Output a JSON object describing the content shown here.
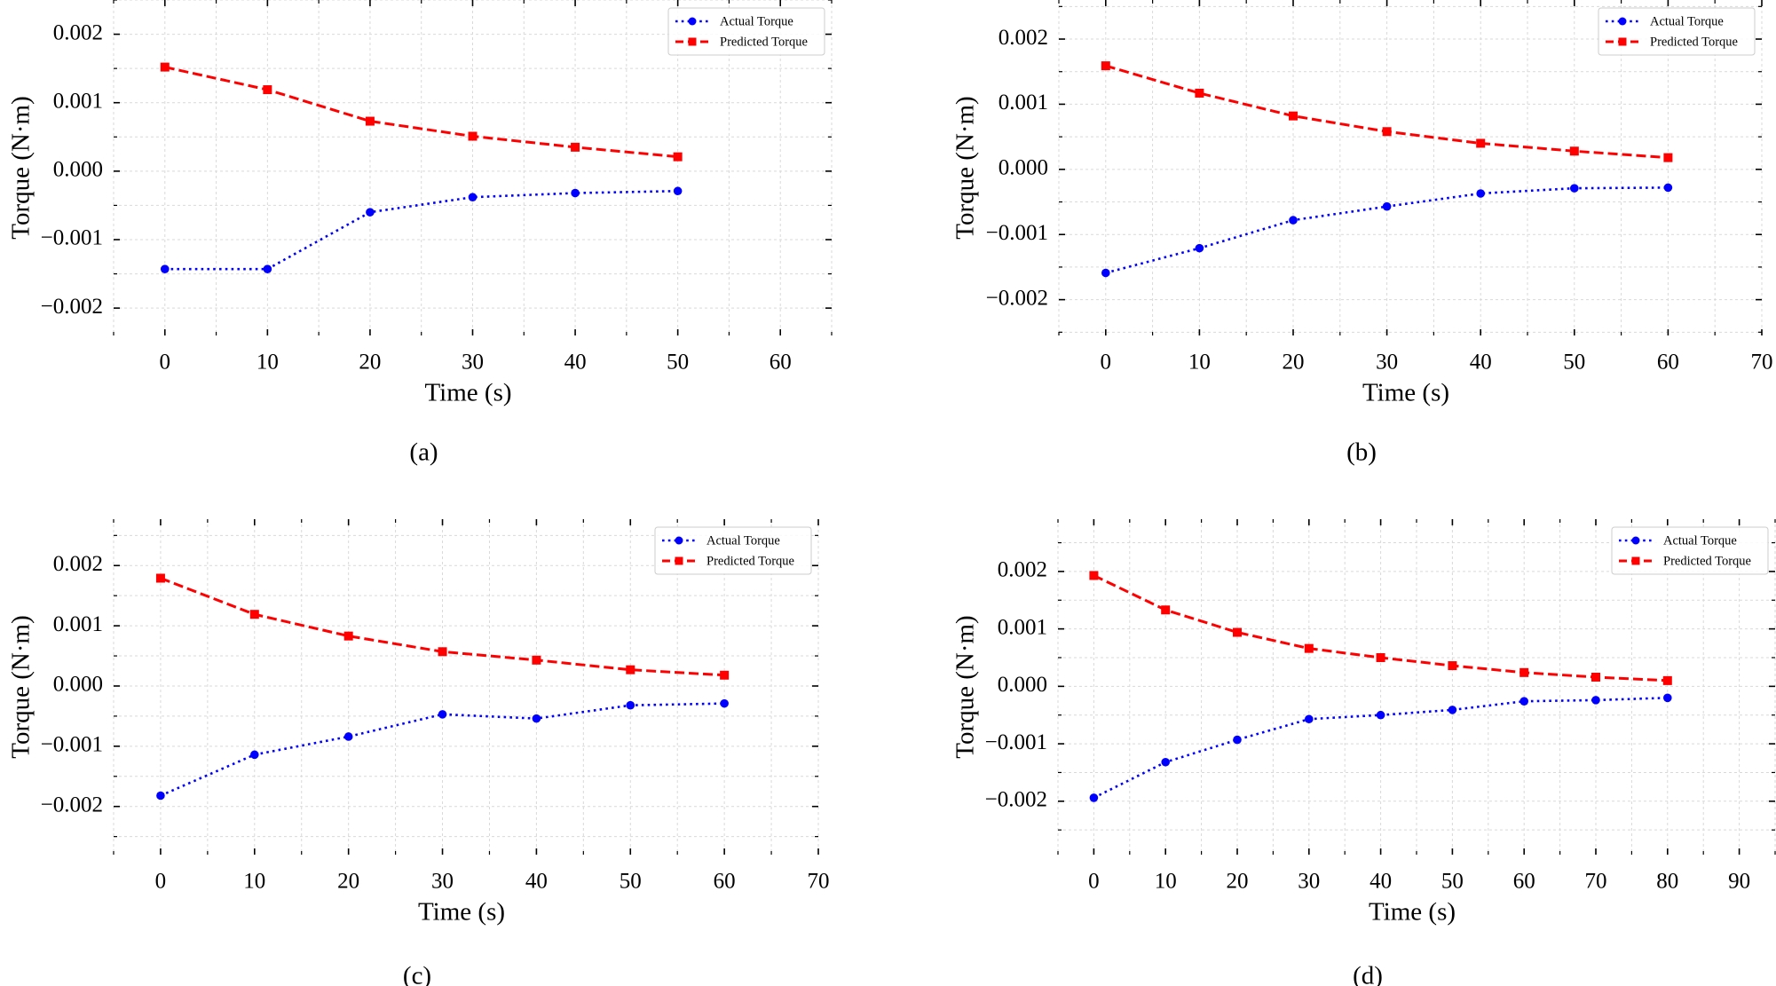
{
  "figure": {
    "panels": [
      "a",
      "b",
      "c",
      "d"
    ]
  },
  "colors": {
    "actual": "#0000ff",
    "predicted": "#ff0000",
    "grid": "#d9d9d9",
    "legend_border": "#cccccc"
  },
  "chart_data": [
    {
      "type": "line",
      "panel": "a",
      "caption": "(a)",
      "title": "",
      "xlabel": "Time (s)",
      "ylabel": "Torque (N·m)",
      "xlim": [
        -5,
        65
      ],
      "ylim": [
        -0.0024,
        0.0025
      ],
      "xticks": [
        0,
        10,
        20,
        30,
        40,
        50,
        60
      ],
      "xtick_labels": [
        "0",
        "10",
        "20",
        "30",
        "40",
        "50",
        "60"
      ],
      "yticks": [
        -0.002,
        -0.001,
        0.0,
        0.001,
        0.002
      ],
      "ytick_labels": [
        "−0.002",
        "−0.001",
        "0.000",
        "0.001",
        "0.002"
      ],
      "grid": true,
      "legend_position": "top-right",
      "x": [
        0,
        10,
        20,
        30,
        40,
        50
      ],
      "series": [
        {
          "name": "Actual Torque",
          "marker": "circle",
          "linestyle": "dotted",
          "values": [
            -0.00143,
            -0.00143,
            -0.0006,
            -0.00038,
            -0.00032,
            -0.00029
          ]
        },
        {
          "name": "Predicted Torque",
          "marker": "square",
          "linestyle": "dashed",
          "values": [
            0.00152,
            0.00119,
            0.00073,
            0.00051,
            0.00035,
            0.00021
          ]
        }
      ]
    },
    {
      "type": "line",
      "panel": "b",
      "caption": "(b)",
      "title": "",
      "xlabel": "Time (s)",
      "ylabel": "Torque (N·m)",
      "xlim": [
        -5,
        70
      ],
      "ylim": [
        -0.00255,
        0.0026
      ],
      "xticks": [
        0,
        10,
        20,
        30,
        40,
        50,
        60,
        70
      ],
      "xtick_labels": [
        "0",
        "10",
        "20",
        "30",
        "40",
        "50",
        "60",
        "70"
      ],
      "yticks": [
        -0.002,
        -0.001,
        0.0,
        0.001,
        0.002
      ],
      "ytick_labels": [
        "−0.002",
        "−0.001",
        "0.000",
        "0.001",
        "0.002"
      ],
      "grid": true,
      "legend_position": "top-right",
      "x": [
        0,
        10,
        20,
        30,
        40,
        50,
        60
      ],
      "series": [
        {
          "name": "Actual Torque",
          "marker": "circle",
          "linestyle": "dotted",
          "values": [
            -0.00159,
            -0.00121,
            -0.00078,
            -0.00057,
            -0.00037,
            -0.00029,
            -0.00028
          ]
        },
        {
          "name": "Predicted Torque",
          "marker": "square",
          "linestyle": "dashed",
          "values": [
            0.00159,
            0.00117,
            0.00082,
            0.00058,
            0.0004,
            0.00028,
            0.00018
          ]
        }
      ]
    },
    {
      "type": "line",
      "panel": "c",
      "caption": "(c)",
      "title": "",
      "xlabel": "Time (s)",
      "ylabel": "Torque (N·m)",
      "xlim": [
        -5,
        70
      ],
      "ylim": [
        -0.0028,
        0.00277
      ],
      "xticks": [
        0,
        10,
        20,
        30,
        40,
        50,
        60,
        70
      ],
      "xtick_labels": [
        "0",
        "10",
        "20",
        "30",
        "40",
        "50",
        "60",
        "70"
      ],
      "yticks": [
        -0.002,
        -0.001,
        0.0,
        0.001,
        0.002
      ],
      "ytick_labels": [
        "−0.002",
        "−0.001",
        "0.000",
        "0.001",
        "0.002"
      ],
      "grid": true,
      "legend_position": "top-right",
      "x": [
        0,
        10,
        20,
        30,
        40,
        50,
        60
      ],
      "series": [
        {
          "name": "Actual Torque",
          "marker": "circle",
          "linestyle": "dotted",
          "values": [
            -0.00182,
            -0.00114,
            -0.00084,
            -0.00047,
            -0.00054,
            -0.00032,
            -0.00029
          ]
        },
        {
          "name": "Predicted Torque",
          "marker": "square",
          "linestyle": "dashed",
          "values": [
            0.00179,
            0.00119,
            0.00083,
            0.00057,
            0.00043,
            0.00027,
            0.00018
          ]
        }
      ]
    },
    {
      "type": "line",
      "panel": "d",
      "caption": "(d)",
      "title": "",
      "xlabel": "Time (s)",
      "ylabel": "Torque (N·m)",
      "xlim": [
        -5,
        95
      ],
      "ylim": [
        -0.00293,
        0.00291
      ],
      "xticks": [
        0,
        10,
        20,
        30,
        40,
        50,
        60,
        70,
        80,
        90
      ],
      "xtick_labels": [
        "0",
        "10",
        "20",
        "30",
        "40",
        "50",
        "60",
        "70",
        "80",
        "90"
      ],
      "yticks": [
        -0.002,
        -0.001,
        0.0,
        0.001,
        0.002
      ],
      "ytick_labels": [
        "−0.002",
        "−0.001",
        "0.000",
        "0.001",
        "0.002"
      ],
      "grid": true,
      "legend_position": "top-right",
      "x": [
        0,
        10,
        20,
        30,
        40,
        50,
        60,
        70,
        80
      ],
      "series": [
        {
          "name": "Actual Torque",
          "marker": "circle",
          "linestyle": "dotted",
          "values": [
            -0.00194,
            -0.00132,
            -0.00093,
            -0.00057,
            -0.0005,
            -0.00041,
            -0.00026,
            -0.00024,
            -0.0002
          ]
        },
        {
          "name": "Predicted Torque",
          "marker": "square",
          "linestyle": "dashed",
          "values": [
            0.00193,
            0.00133,
            0.00094,
            0.00066,
            0.0005,
            0.00036,
            0.00024,
            0.00016,
            0.0001
          ]
        }
      ]
    }
  ]
}
